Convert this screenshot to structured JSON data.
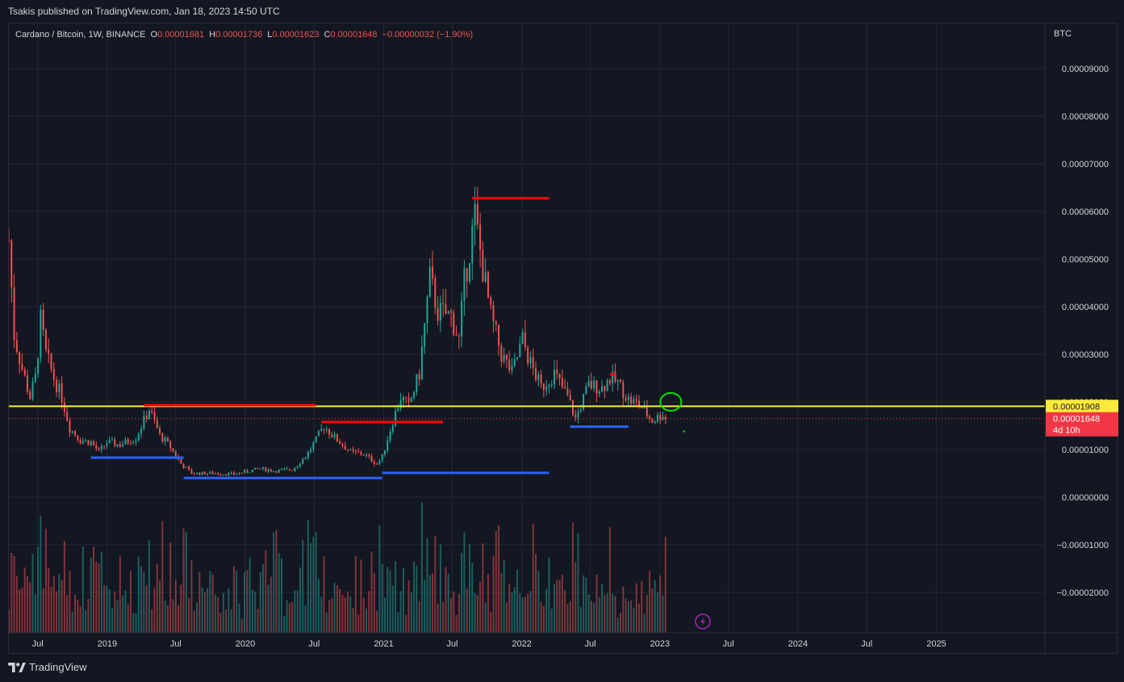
{
  "header": {
    "publisher_line": "Tsakis published on TradingView.com, Jan 18, 2023 14:50 UTC"
  },
  "footer": {
    "brand": "TradingView"
  },
  "colors": {
    "background": "#131722",
    "grid": "#242733",
    "up": "#26a69a",
    "down": "#ef5350",
    "yellow_line": "#ffeb3b",
    "red_line": "#ff0000",
    "blue_line": "#2962ff",
    "price_label": "#f23645",
    "green_circle": "#00e600",
    "lightning": "#9c27b0"
  },
  "chart_data": {
    "type": "candlestick",
    "symbol": "Cardano / Bitcoin",
    "interval": "1W",
    "exchange": "BINANCE",
    "legend": {
      "o_label": "O",
      "o": "0.00001681",
      "h_label": "H",
      "h": "0.00001736",
      "l_label": "L",
      "l": "0.00001623",
      "c_label": "C",
      "c": "0.00001648",
      "change": "−0.00000032 (−1.90%)"
    },
    "currency": "BTC",
    "y_ticks": [
      "0.00009000",
      "0.00008000",
      "0.00007000",
      "0.00006000",
      "0.00005000",
      "0.00004000",
      "0.00003000",
      "0.00002000",
      "0.00001000",
      "0.00000000",
      "−0.00001000",
      "−0.00002000"
    ],
    "y_tick_values": [
      9e-05,
      8e-05,
      7e-05,
      6e-05,
      5e-05,
      4e-05,
      3e-05,
      2e-05,
      1e-05,
      0,
      -1e-05,
      -2e-05
    ],
    "ylim": [
      -2.85e-05,
      9.95e-05
    ],
    "x_ticks": [
      {
        "label": "Jul",
        "date": "2018-07-01"
      },
      {
        "label": "2019",
        "date": "2019-01-01"
      },
      {
        "label": "Jul",
        "date": "2019-07-01"
      },
      {
        "label": "2020",
        "date": "2020-01-01"
      },
      {
        "label": "Jul",
        "date": "2020-07-01"
      },
      {
        "label": "2021",
        "date": "2021-01-01"
      },
      {
        "label": "Jul",
        "date": "2021-07-01"
      },
      {
        "label": "2022",
        "date": "2022-01-01"
      },
      {
        "label": "Jul",
        "date": "2022-07-01"
      },
      {
        "label": "2023",
        "date": "2023-01-01"
      },
      {
        "label": "Jul",
        "date": "2023-07-01"
      },
      {
        "label": "2024",
        "date": "2024-01-01"
      },
      {
        "label": "Jul",
        "date": "2024-07-01"
      },
      {
        "label": "2025",
        "date": "2025-01-01"
      }
    ],
    "xlim": [
      "2018-04-16",
      "2025-10-15"
    ],
    "price_path": [
      [
        "2018-04-16",
        5.4e-05
      ],
      [
        "2018-04-30",
        3.4e-05
      ],
      [
        "2018-05-21",
        2.7e-05
      ],
      [
        "2018-06-11",
        2.1e-05
      ],
      [
        "2018-06-25",
        2.5e-05
      ],
      [
        "2018-07-09",
        3.7e-05
      ],
      [
        "2018-07-23",
        3e-05
      ],
      [
        "2018-08-13",
        2.5e-05
      ],
      [
        "2018-09-03",
        2.1e-05
      ],
      [
        "2018-09-24",
        1.45e-05
      ],
      [
        "2018-10-22",
        1.2e-05
      ],
      [
        "2018-11-19",
        1.15e-05
      ],
      [
        "2018-12-10",
        9.5e-06
      ],
      [
        "2018-12-31",
        1.15e-05
      ],
      [
        "2019-02-04",
        1.1e-05
      ],
      [
        "2019-03-18",
        1.25e-05
      ],
      [
        "2019-04-22",
        1.85e-05
      ],
      [
        "2019-05-20",
        1.3e-05
      ],
      [
        "2019-06-17",
        1.05e-05
      ],
      [
        "2019-07-15",
        7e-06
      ],
      [
        "2019-08-12",
        5e-06
      ],
      [
        "2019-10-07",
        5e-06
      ],
      [
        "2019-12-02",
        4.8e-06
      ],
      [
        "2020-02-10",
        6e-06
      ],
      [
        "2020-03-16",
        5.5e-06
      ],
      [
        "2020-05-04",
        5.8e-06
      ],
      [
        "2020-06-08",
        8.5e-06
      ],
      [
        "2020-07-06",
        1.2e-05
      ],
      [
        "2020-07-27",
        1.5e-05
      ],
      [
        "2020-08-24",
        1.25e-05
      ],
      [
        "2020-10-05",
        9.5e-06
      ],
      [
        "2020-11-09",
        9e-06
      ],
      [
        "2020-12-14",
        7e-06
      ],
      [
        "2020-12-28",
        8.5e-06
      ],
      [
        "2021-01-25",
        1.6e-05
      ],
      [
        "2021-02-15",
        2.1e-05
      ],
      [
        "2021-03-08",
        1.9e-05
      ],
      [
        "2021-04-05",
        2.6e-05
      ],
      [
        "2021-05-03",
        4.6e-05
      ],
      [
        "2021-05-24",
        3.9e-05
      ],
      [
        "2021-06-28",
        3.8e-05
      ],
      [
        "2021-07-19",
        3.3e-05
      ],
      [
        "2021-08-02",
        4.5e-05
      ],
      [
        "2021-08-30",
        5.9e-05
      ],
      [
        "2021-09-20",
        4.8e-05
      ],
      [
        "2021-10-11",
        3.8e-05
      ],
      [
        "2021-11-08",
        3e-05
      ],
      [
        "2021-12-06",
        2.6e-05
      ],
      [
        "2022-01-03",
        3.3e-05
      ],
      [
        "2022-01-24",
        2.8e-05
      ],
      [
        "2022-02-21",
        2.3e-05
      ],
      [
        "2022-03-28",
        2.6e-05
      ],
      [
        "2022-05-02",
        2.1e-05
      ],
      [
        "2022-05-23",
        1.65e-05
      ],
      [
        "2022-06-27",
        2.35e-05
      ],
      [
        "2022-08-01",
        2.3e-05
      ],
      [
        "2022-08-22",
        2.5e-05
      ],
      [
        "2022-09-12",
        2.4e-05
      ],
      [
        "2022-10-10",
        2.05e-05
      ],
      [
        "2022-11-07",
        1.95e-05
      ],
      [
        "2022-12-12",
        1.6e-05
      ],
      [
        "2023-01-09",
        1.75e-05
      ],
      [
        "2023-01-16",
        1.65e-05
      ]
    ],
    "drawings": {
      "yellow_hline": 1.908e-05,
      "red_lines": [
        {
          "from": "2019-04-08",
          "to": "2020-07-06",
          "y": 1.93e-05
        },
        {
          "from": "2020-07-20",
          "to": "2021-06-07",
          "y": 1.58e-05
        },
        {
          "from": "2021-08-23",
          "to": "2022-03-14",
          "y": 6.28e-05
        },
        {
          "from": "2022-08-22",
          "to": "2022-09-05",
          "y": 2.58e-05
        }
      ],
      "blue_lines": [
        {
          "from": "2018-11-19",
          "to": "2019-07-22",
          "y": 8.3e-06
        },
        {
          "from": "2019-07-22",
          "to": "2020-12-28",
          "y": 4e-06
        },
        {
          "from": "2020-12-28",
          "to": "2022-03-14",
          "y": 5.1e-06
        },
        {
          "from": "2022-05-09",
          "to": "2022-10-10",
          "y": 1.48e-05
        }
      ],
      "green_circle": {
        "date": "2023-01-30",
        "y": 2e-05
      },
      "green_dot": {
        "date": "2023-03-06",
        "y": 1.38e-05
      }
    },
    "price_labels": [
      {
        "value": "0.00001908",
        "y": 1.908e-05,
        "style": "yellow"
      },
      {
        "value": "0.00001648",
        "countdown": "4d 10h",
        "y": 1.648e-05,
        "style": "red"
      }
    ]
  }
}
